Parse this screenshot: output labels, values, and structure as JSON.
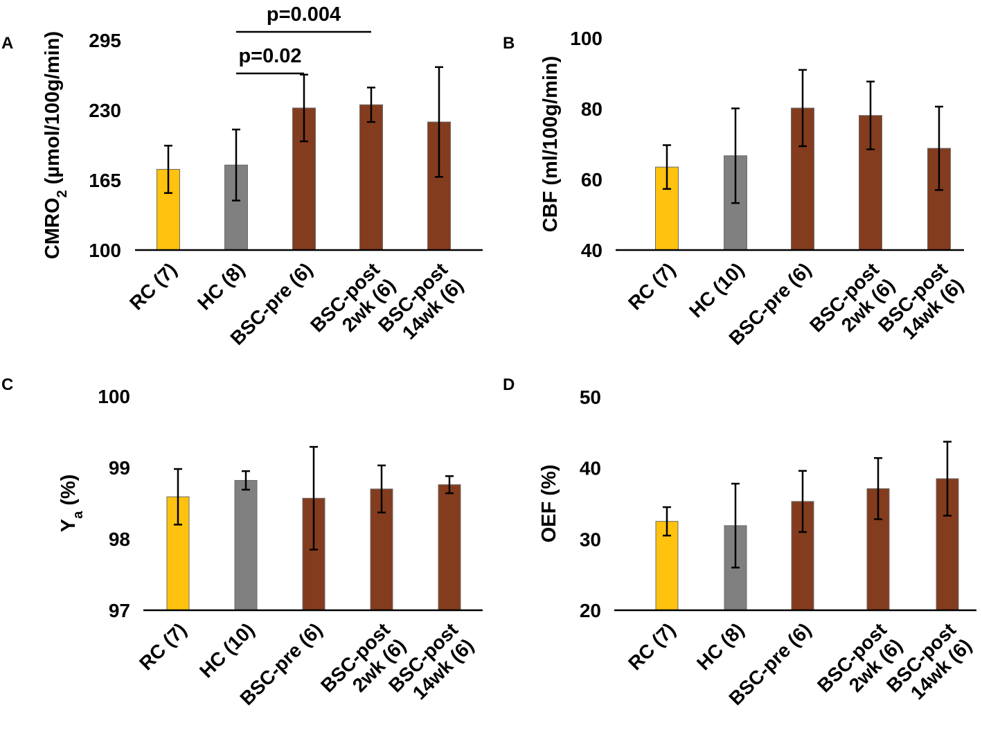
{
  "colors": {
    "RC": "#FFC20E",
    "HC": "#808080",
    "BSC": "#843C1E",
    "axis": "#000000",
    "bar_edge": "#6b6b6b"
  },
  "chart_data": [
    {
      "panel": "A",
      "type": "bar",
      "ylabel_main": "CMRO",
      "ylabel_sub": "2",
      "ylabel_unit": " (µmol/100g/min)",
      "yticks": [
        100,
        165,
        230,
        295
      ],
      "ylim": [
        100,
        295
      ],
      "categories": [
        {
          "lines": [
            "RC (7)"
          ],
          "group": "RC"
        },
        {
          "lines": [
            "HC (8)"
          ],
          "group": "HC"
        },
        {
          "lines": [
            "BSC-pre (6)"
          ],
          "group": "BSC"
        },
        {
          "lines": [
            "BSC-post",
            "2wk (6)"
          ],
          "group": "BSC"
        },
        {
          "lines": [
            "BSC-post",
            "14wk (6)"
          ],
          "group": "BSC"
        }
      ],
      "values": [
        175,
        179,
        232,
        235,
        219
      ],
      "errors": [
        22,
        33,
        31,
        16,
        51
      ],
      "significance": [
        {
          "from": 1,
          "to": 2,
          "label": "p=0.02"
        },
        {
          "from": 1,
          "to": 3,
          "label": "p=0.004"
        }
      ]
    },
    {
      "panel": "B",
      "type": "bar",
      "ylabel_main": "CBF (ml/100g/min)",
      "ylabel_sub": "",
      "ylabel_unit": "",
      "yticks": [
        40,
        60,
        80,
        100
      ],
      "ylim": [
        40,
        100
      ],
      "categories": [
        {
          "lines": [
            "RC (7)"
          ],
          "group": "RC"
        },
        {
          "lines": [
            "HC (10)"
          ],
          "group": "HC"
        },
        {
          "lines": [
            "BSC-pre (6)"
          ],
          "group": "BSC"
        },
        {
          "lines": [
            "BSC-post",
            "2wk (6)"
          ],
          "group": "BSC"
        },
        {
          "lines": [
            "BSC-post",
            "14wk (6)"
          ],
          "group": "BSC"
        }
      ],
      "values": [
        63.5,
        66.7,
        80.2,
        78.1,
        68.8
      ],
      "errors": [
        6.2,
        13.4,
        10.8,
        9.6,
        11.8
      ],
      "significance": []
    },
    {
      "panel": "C",
      "type": "bar",
      "ylabel_main": "Y",
      "ylabel_sub": "a",
      "ylabel_unit": " (%)",
      "yticks": [
        97,
        98,
        99,
        100
      ],
      "ylim": [
        97,
        100
      ],
      "categories": [
        {
          "lines": [
            "RC (7)"
          ],
          "group": "RC"
        },
        {
          "lines": [
            "HC (10)"
          ],
          "group": "HC"
        },
        {
          "lines": [
            "BSC-pre (6)"
          ],
          "group": "BSC"
        },
        {
          "lines": [
            "BSC-post",
            "2wk (6)"
          ],
          "group": "BSC"
        },
        {
          "lines": [
            "BSC-post",
            "14wk (6)"
          ],
          "group": "BSC"
        }
      ],
      "values": [
        98.59,
        98.82,
        98.57,
        98.7,
        98.76
      ],
      "errors": [
        0.39,
        0.13,
        0.72,
        0.33,
        0.12
      ],
      "significance": []
    },
    {
      "panel": "D",
      "type": "bar",
      "ylabel_main": "OEF (%)",
      "ylabel_sub": "",
      "ylabel_unit": "",
      "yticks": [
        20,
        30,
        40,
        50
      ],
      "ylim": [
        20,
        50
      ],
      "categories": [
        {
          "lines": [
            "RC (7)"
          ],
          "group": "RC"
        },
        {
          "lines": [
            "HC (8)"
          ],
          "group": "HC"
        },
        {
          "lines": [
            "BSC-pre (6)"
          ],
          "group": "BSC"
        },
        {
          "lines": [
            "BSC-post",
            "2wk (6)"
          ],
          "group": "BSC"
        },
        {
          "lines": [
            "BSC-post",
            "14wk (6)"
          ],
          "group": "BSC"
        }
      ],
      "values": [
        32.5,
        31.9,
        35.3,
        37.1,
        38.5
      ],
      "errors": [
        2.0,
        5.9,
        4.3,
        4.3,
        5.2
      ],
      "significance": []
    }
  ]
}
